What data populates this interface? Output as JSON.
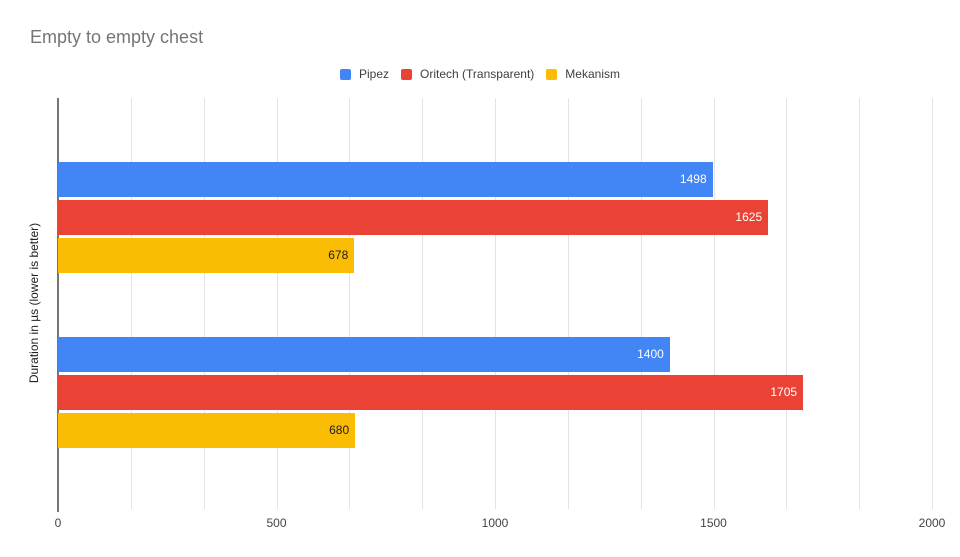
{
  "title": "Empty to empty chest",
  "chart_data": {
    "type": "bar",
    "orientation": "horizontal",
    "title": "Empty to empty chest",
    "ylabel": "Duration in µs (lower is better)",
    "xlabel": "",
    "xlim": [
      0,
      2000
    ],
    "x_ticks": [
      0,
      500,
      1000,
      1500,
      2000
    ],
    "minor_gridlines_per_major": 3,
    "grid": true,
    "legend_position": "top",
    "categories": [
      "",
      ""
    ],
    "series": [
      {
        "name": "Pipez",
        "color": "#4285f4",
        "label_color": "#ffffff",
        "values": [
          1498,
          1400
        ]
      },
      {
        "name": "Oritech (Transparent)",
        "color": "#ea4335",
        "label_color": "#ffffff",
        "values": [
          1625,
          1705
        ]
      },
      {
        "name": "Mekanism",
        "color": "#fbbc04",
        "label_color": "#212121",
        "values": [
          678,
          680
        ]
      }
    ]
  }
}
